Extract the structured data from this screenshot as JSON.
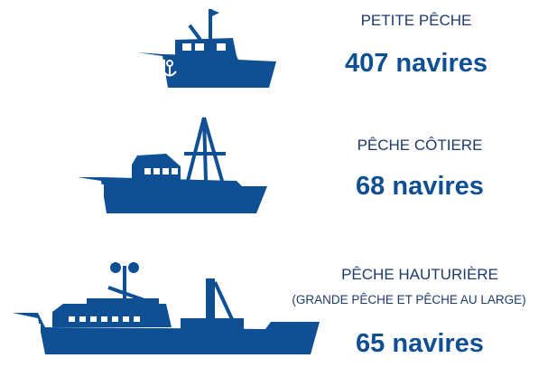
{
  "items": [
    {
      "label": "PETITE PÊCHE",
      "count": "407 navires"
    },
    {
      "label": "PÊCHE CÔTIERE",
      "count": "68 navires"
    },
    {
      "label": "PÊCHE HAUTURIÈRE",
      "sublabel": "(GRANDE PÊCHE ET PÊCHE AU LARGE)",
      "count": "65 navires"
    }
  ]
}
